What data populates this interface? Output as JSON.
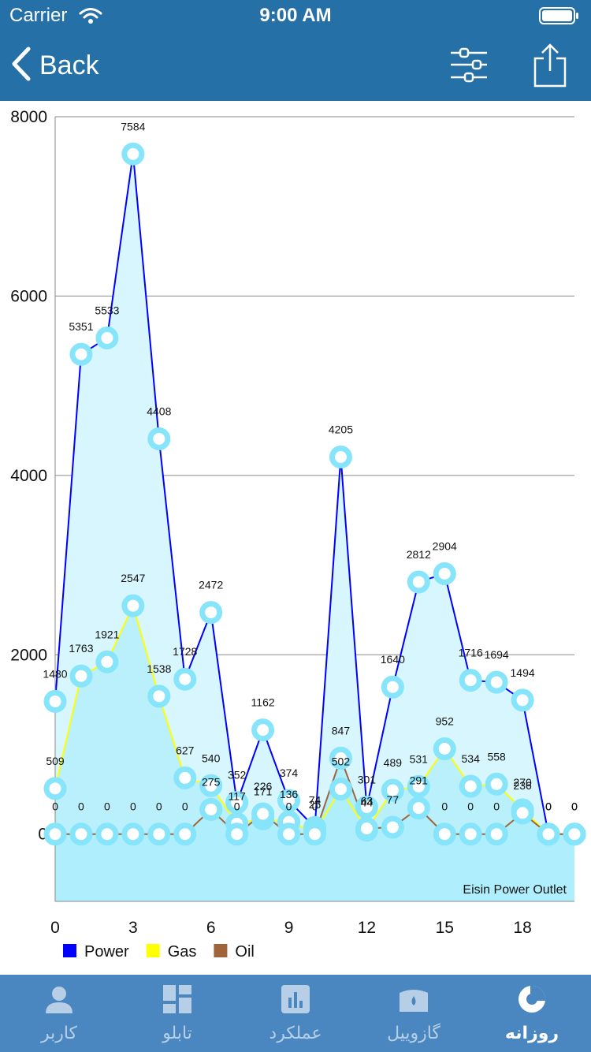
{
  "status": {
    "carrier": "Carrier",
    "time": "9:00 AM"
  },
  "nav": {
    "back_label": "Back"
  },
  "chart_data": {
    "type": "line",
    "x": [
      0,
      1,
      2,
      3,
      4,
      5,
      6,
      7,
      8,
      9,
      10,
      11,
      12,
      13,
      14,
      15,
      16,
      17,
      18,
      19,
      20
    ],
    "xticks": [
      "0",
      "3",
      "6",
      "9",
      "12",
      "15",
      "18"
    ],
    "yticks": [
      "0",
      "2000",
      "4000",
      "6000",
      "8000"
    ],
    "ylim": [
      -750,
      8000
    ],
    "series": [
      {
        "name": "Power",
        "color": "#0000ff",
        "fill": "#d7f6fd",
        "values": [
          1480,
          5351,
          5533,
          7584,
          4408,
          1728,
          2472,
          352,
          1162,
          374,
          74,
          4205,
          301,
          1640,
          2812,
          2904,
          1716,
          1694,
          1494,
          0,
          0
        ],
        "labels": [
          "1480",
          "5351",
          "5533",
          "7584",
          "4408",
          "1728",
          "2472",
          "352",
          "1162",
          "374",
          "74",
          "4205",
          "301",
          "1640",
          "2812",
          "2904",
          "1716",
          "1694",
          "1494",
          "0",
          "0"
        ]
      },
      {
        "name": "Gas",
        "color": "#ffff00",
        "fill": "#b9f0fb",
        "values": [
          509,
          1763,
          1921,
          2547,
          1538,
          627,
          540,
          117,
          171,
          136,
          25,
          502,
          44,
          489,
          531,
          952,
          534,
          558,
          270,
          0,
          0
        ],
        "labels": [
          "509",
          "1763",
          "1921",
          "2547",
          "1538",
          "627",
          "540",
          "117",
          "171",
          "136",
          "25",
          "502",
          "44",
          "489",
          "531",
          "952",
          "534",
          "558",
          "270",
          "0",
          "0"
        ]
      },
      {
        "name": "Oil",
        "color": "#a0643a",
        "fill": "#aeeefd",
        "values": [
          0,
          0,
          0,
          0,
          0,
          0,
          275,
          0,
          226,
          0,
          0,
          847,
          63,
          77,
          291,
          0,
          0,
          0,
          236,
          0,
          0
        ],
        "labels": [
          "0",
          "0",
          "0",
          "0",
          "0",
          "0",
          "275",
          "0",
          "226",
          "0",
          "0",
          "847",
          "63",
          "77",
          "291",
          "0",
          "0",
          "0",
          "236",
          "0",
          "0"
        ]
      }
    ],
    "annotation": "Eisin Power Outlet",
    "legend": [
      {
        "name": "Power",
        "color": "#0000ff"
      },
      {
        "name": "Gas",
        "color": "#ffff00"
      },
      {
        "name": "Oil",
        "color": "#a0643a"
      }
    ],
    "grid": true,
    "legend_position": "bottom-left"
  },
  "tabs": [
    {
      "label": "کاربر",
      "icon": "user-icon",
      "active": false
    },
    {
      "label": "تابلو",
      "icon": "dashboard-icon",
      "active": false
    },
    {
      "label": "عملکرد",
      "icon": "performance-chart-icon",
      "active": false
    },
    {
      "label": "گازوییل",
      "icon": "fuel-tank-icon",
      "active": false
    },
    {
      "label": "روزانه",
      "icon": "daily-pie-icon",
      "active": true
    }
  ]
}
